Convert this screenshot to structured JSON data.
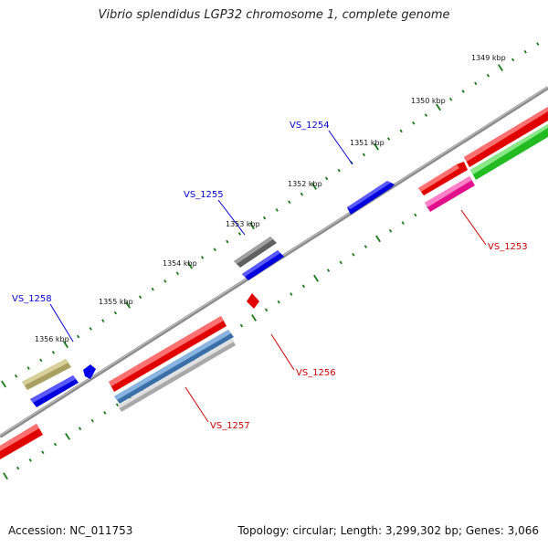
{
  "title": "Vibrio splendidus LGP32 chromosome 1, complete genome",
  "accession": "Accession: NC_011753",
  "summary": "Topology: circular; Length: 3,299,302 bp; Genes: 3,066",
  "colors": {
    "forward_label": "#0000cc",
    "reverse_label": "#cc0000",
    "backbone": "#777777",
    "ticks": "#1a7a1a"
  },
  "ticks": [
    {
      "label": "1349 kbp"
    },
    {
      "label": "1350 kbp"
    },
    {
      "label": "1351 kbp"
    },
    {
      "label": "1352 kbp"
    },
    {
      "label": "1353 kbp"
    },
    {
      "label": "1354 kbp"
    },
    {
      "label": "1355 kbp"
    },
    {
      "label": "1356 kbp"
    }
  ],
  "gene_labels": [
    {
      "name": "VS_1254",
      "strand": "forward"
    },
    {
      "name": "VS_1255",
      "strand": "forward"
    },
    {
      "name": "VS_1258",
      "strand": "forward"
    },
    {
      "name": "VS_1253",
      "strand": "reverse"
    },
    {
      "name": "VS_1256",
      "strand": "reverse"
    },
    {
      "name": "VS_1257",
      "strand": "reverse"
    }
  ]
}
